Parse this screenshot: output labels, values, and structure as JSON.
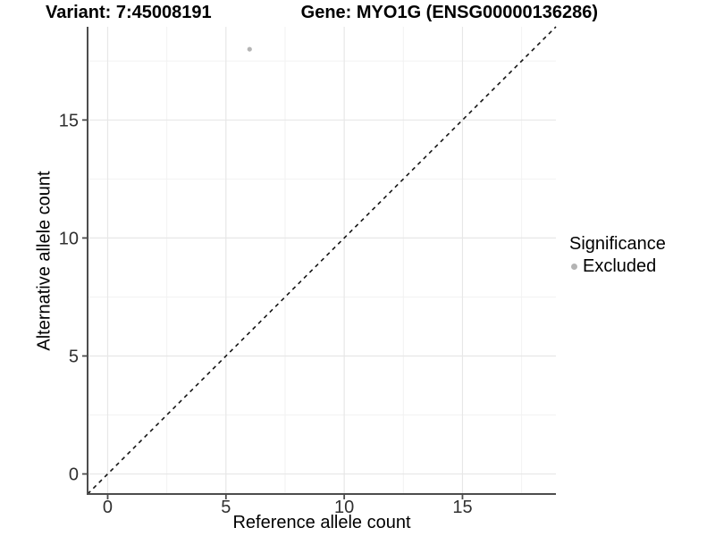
{
  "chart_data": {
    "type": "scatter",
    "title_left": "Variant: 7:45008191",
    "title_right": "Gene: MYO1G (ENSG00000136286)",
    "xlabel": "Reference allele count",
    "ylabel": "Alternative allele count",
    "xlim": [
      -0.85,
      18.95
    ],
    "ylim": [
      -0.85,
      18.95
    ],
    "x_ticks": [
      0,
      5,
      10,
      15
    ],
    "y_ticks": [
      0,
      5,
      10,
      15
    ],
    "x_minor_ticks": [
      2.5,
      7.5,
      12.5,
      17.5
    ],
    "y_minor_ticks": [
      2.5,
      7.5,
      12.5,
      17.5
    ],
    "grid": "major and minor, light gray on white panel",
    "points": [
      {
        "x": 6,
        "y": 18,
        "series": "Excluded"
      }
    ],
    "reference_line": {
      "type": "identity y=x",
      "style": "dashed",
      "from": [
        -0.85,
        -0.85
      ],
      "to": [
        18.95,
        18.95
      ]
    },
    "legend": {
      "title": "Significance",
      "position": "right",
      "items": [
        {
          "label": "Excluded",
          "color": "#b4b4b4"
        }
      ]
    },
    "colors": {
      "point": "#b4b4b4",
      "grid_major": "#e7e7e7",
      "grid_minor": "#f2f2f2",
      "axis_line": "#4d4d4d",
      "tick_text": "#303030",
      "dashed_line": "#141414"
    }
  }
}
